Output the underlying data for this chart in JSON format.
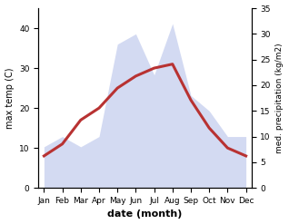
{
  "months": [
    "Jan",
    "Feb",
    "Mar",
    "Apr",
    "May",
    "Jun",
    "Jul",
    "Aug",
    "Sep",
    "Oct",
    "Nov",
    "Dec"
  ],
  "temperature": [
    8,
    11,
    17,
    20,
    25,
    28,
    30,
    31,
    22,
    15,
    10,
    8
  ],
  "precipitation": [
    8,
    10,
    8,
    10,
    28,
    30,
    22,
    32,
    18,
    15,
    10,
    10
  ],
  "temp_color": "#b83232",
  "precip_color": "#b0bce8",
  "xlabel": "date (month)",
  "ylabel_left": "max temp (C)",
  "ylabel_right": "med. precipitation (kg/m2)",
  "ylim_left": [
    0,
    45
  ],
  "ylim_right": [
    0,
    35
  ],
  "yticks_left": [
    0,
    10,
    20,
    30,
    40
  ],
  "yticks_right": [
    0,
    5,
    10,
    15,
    20,
    25,
    30,
    35
  ],
  "background_color": "#ffffff",
  "temp_linewidth": 2.2,
  "precip_alpha": 0.55
}
